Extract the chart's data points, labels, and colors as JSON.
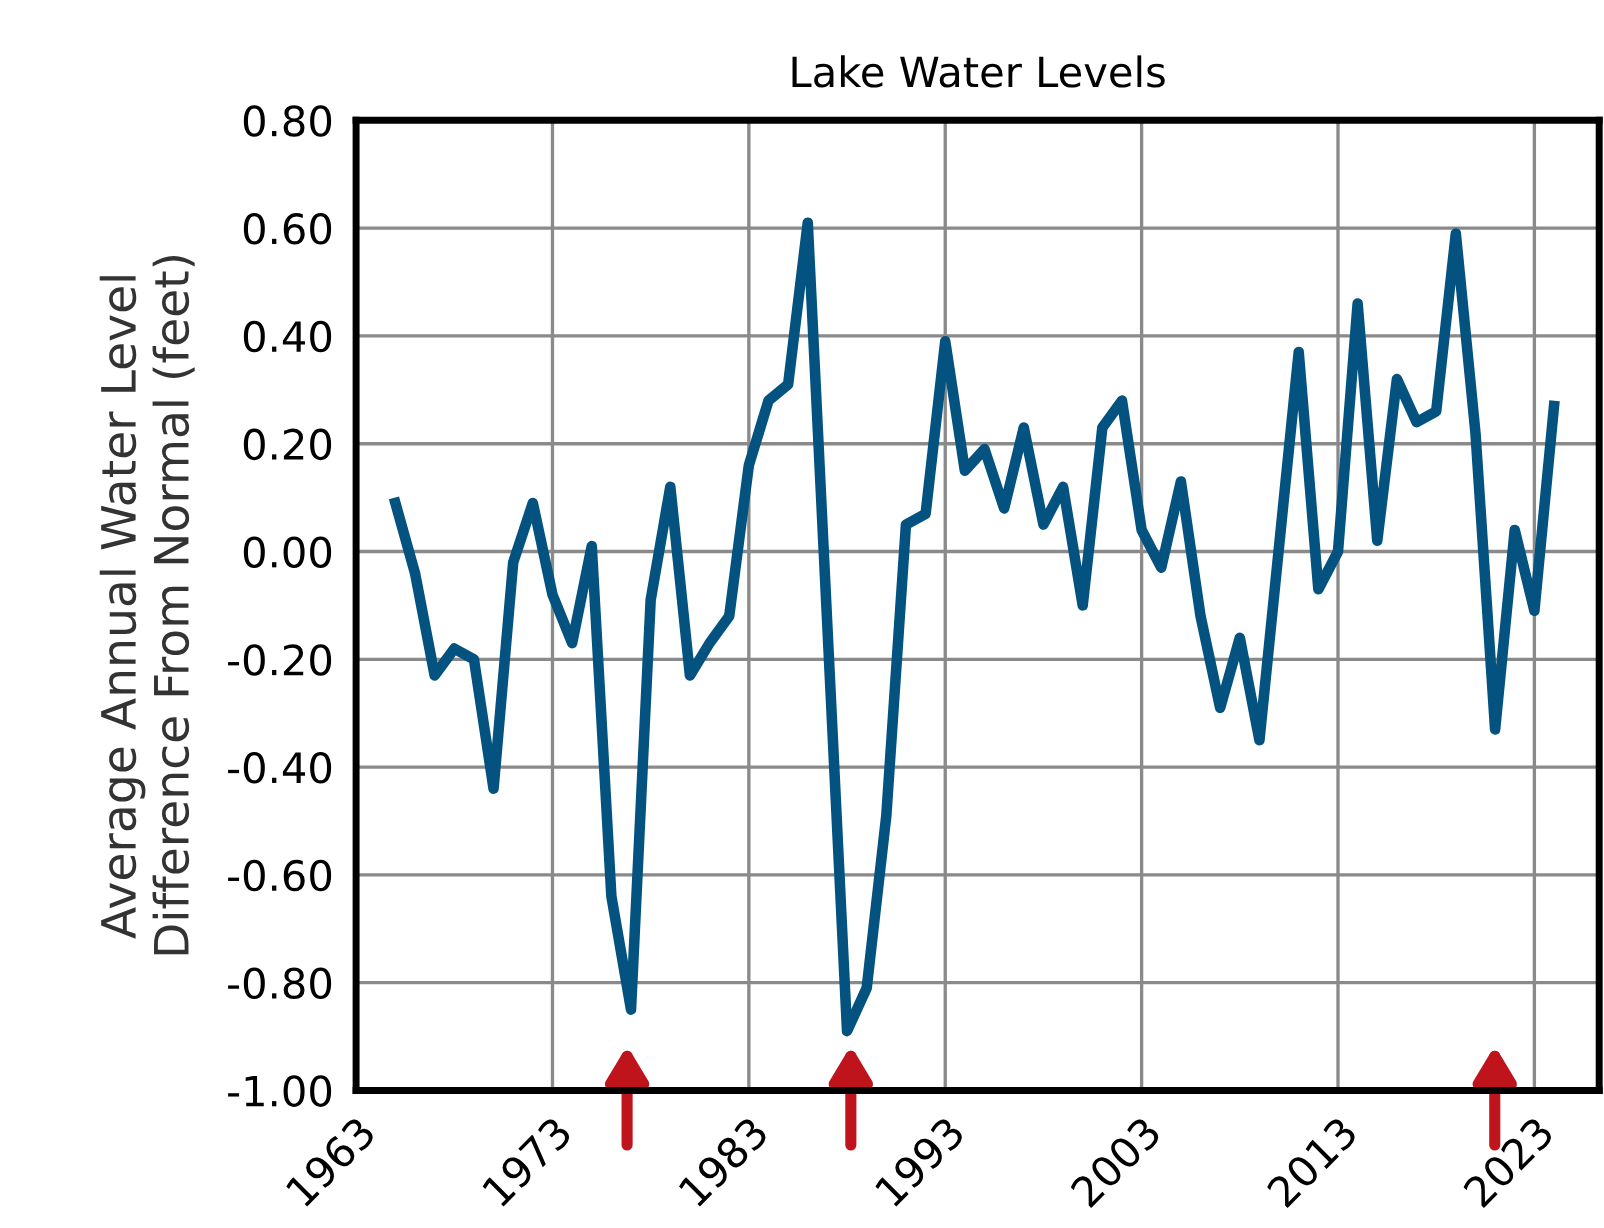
{
  "chart_data": {
    "type": "line",
    "title": "Lake Water Levels",
    "ylabel": "Average Annual Water Level\nDifference From Normal (feet)",
    "series": [
      {
        "color": "#03527f",
        "x": [
          1965,
          1966,
          1967,
          1968,
          1969,
          1970,
          1971,
          1972,
          1973,
          1974,
          1975,
          1976,
          1977,
          1978,
          1979,
          1980,
          1981,
          1982,
          1983,
          1984,
          1985,
          1986,
          1988,
          1989,
          1990,
          1991,
          1992,
          1993,
          1994,
          1995,
          1996,
          1997,
          1998,
          1999,
          2000,
          2001,
          2002,
          2003,
          2004,
          2005,
          2006,
          2007,
          2008,
          2009,
          2011,
          2012,
          2013,
          2014,
          2015,
          2016,
          2017,
          2018,
          2019,
          2020,
          2021,
          2022,
          2023,
          2024
        ],
        "values": [
          0.09,
          -0.04,
          -0.23,
          -0.18,
          -0.2,
          -0.44,
          -0.02,
          0.09,
          -0.08,
          -0.17,
          0.01,
          -0.64,
          -0.85,
          -0.09,
          0.12,
          -0.23,
          -0.17,
          -0.12,
          0.16,
          0.28,
          0.31,
          0.61,
          -0.89,
          -0.81,
          -0.49,
          0.05,
          0.07,
          0.39,
          0.15,
          0.19,
          0.08,
          0.23,
          0.05,
          0.12,
          -0.1,
          0.23,
          0.28,
          0.04,
          -0.03,
          0.13,
          -0.12,
          -0.29,
          -0.16,
          -0.35,
          0.37,
          -0.07,
          0.0,
          0.46,
          0.02,
          0.32,
          0.24,
          0.26,
          0.59,
          0.22,
          -0.33,
          0.04,
          -0.11,
          0.27
        ]
      }
    ],
    "xlim": [
      1963,
      2026.3
    ],
    "xticks": [
      1963,
      1973,
      1983,
      1993,
      2003,
      2013,
      2023
    ],
    "ylim": [
      -1.0,
      0.8
    ],
    "yticks": [
      {
        "value": -1.0,
        "label": "-1.00"
      },
      {
        "value": -0.8,
        "label": "-0.80"
      },
      {
        "value": -0.6,
        "label": "-0.60"
      },
      {
        "value": -0.4,
        "label": "-0.40"
      },
      {
        "value": -0.2,
        "label": "-0.20"
      },
      {
        "value": 0.0,
        "label": "0.00"
      },
      {
        "value": 0.2,
        "label": "0.20"
      },
      {
        "value": 0.4,
        "label": "0.40"
      },
      {
        "value": 0.6,
        "label": "0.60"
      },
      {
        "value": 0.8,
        "label": "0.80"
      }
    ],
    "grid": true,
    "marker": "none",
    "line_style": "solid"
  }
}
